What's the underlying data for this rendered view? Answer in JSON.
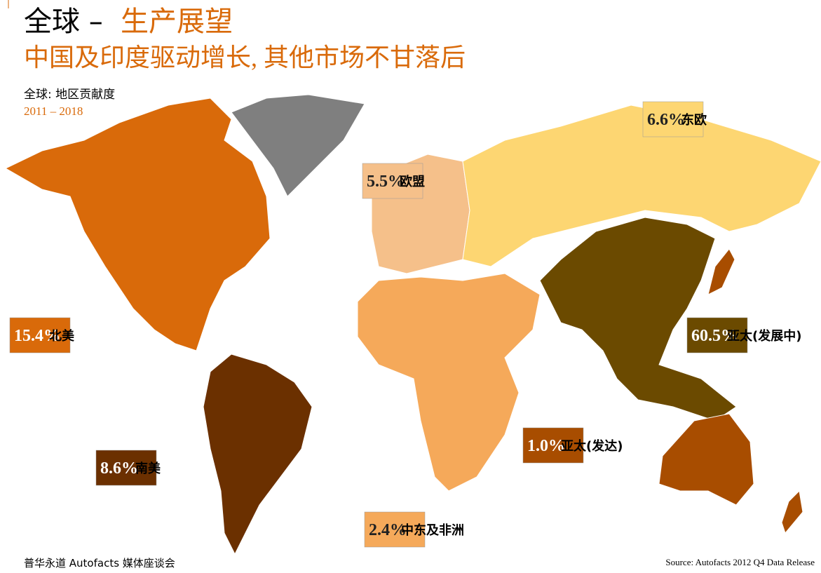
{
  "header": {
    "title_lead": "全球 –",
    "title_accent": "生产展望",
    "subtitle": "中国及印度驱动增长, 其他市场不甘落后"
  },
  "legend": {
    "label": "全球: 地区贡献度",
    "period": "2011 – 2018"
  },
  "regions": [
    {
      "name": "北美",
      "value_label": "15.4%",
      "color": "#d96a0a"
    },
    {
      "name": "南美",
      "value_label": "8.6%",
      "color": "#6b3000"
    },
    {
      "name": "欧盟",
      "value_label": "5.5%",
      "color": "#f5c08a"
    },
    {
      "name": "东欧",
      "value_label": "6.6%",
      "color": "#fdd672"
    },
    {
      "name": "中东及非洲",
      "value_label": "2.4%",
      "color": "#f5a95a"
    },
    {
      "name": "亚太(发展中)",
      "value_label": "60.5%",
      "color": "#6b4a00"
    },
    {
      "name": "亚太(发达)",
      "value_label": "1.0%",
      "color": "#a84d00"
    }
  ],
  "footer": {
    "left": "普华永道 Autofacts 媒体座谈会",
    "source": "Source: Autofacts 2012 Q4 Data Release"
  }
}
